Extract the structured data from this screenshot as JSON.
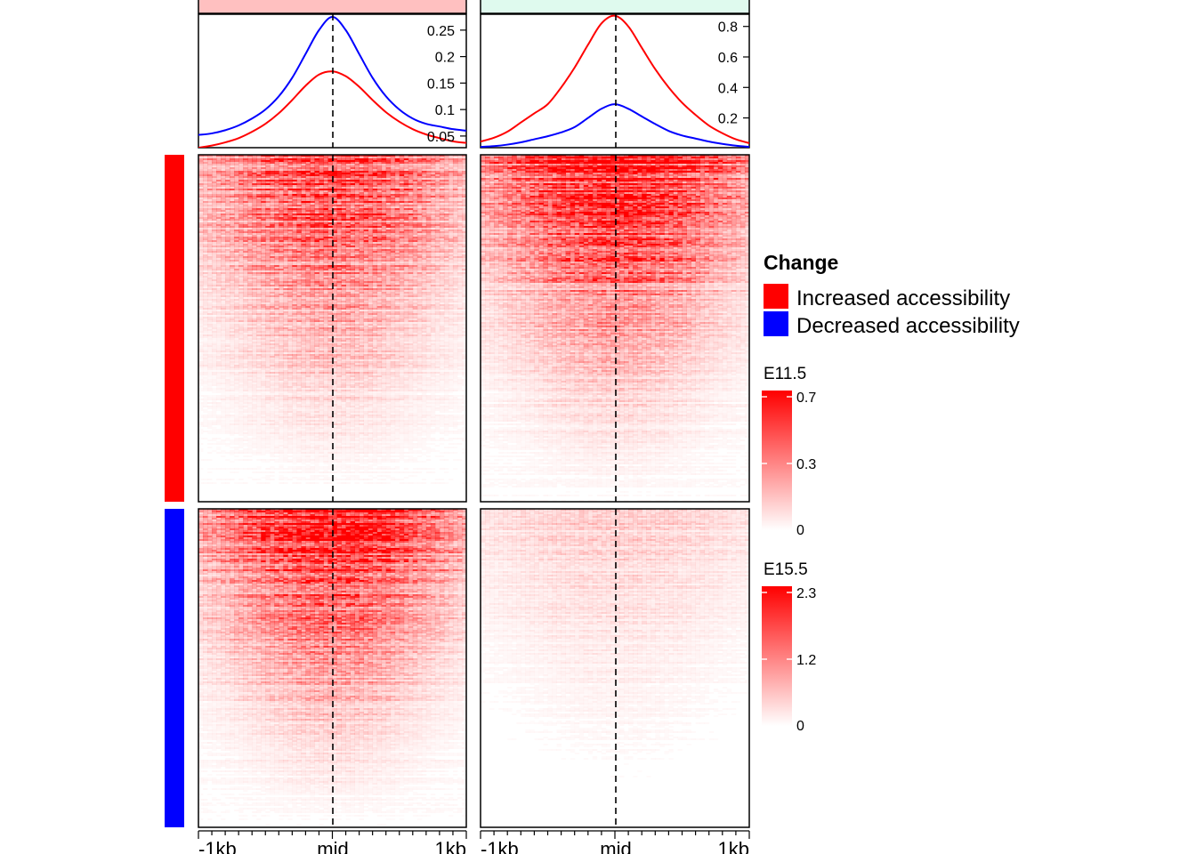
{
  "colors": {
    "increased": "#FF0000",
    "decreased": "#0000FF",
    "header_left": "#FFC0C0",
    "header_right": "#DFFAEE",
    "heat_high": "#FF0000",
    "heat_low": "#FFFFFF"
  },
  "legend": {
    "title": "Change",
    "items": [
      {
        "label": "Increased accessibility",
        "color": "#FF0000"
      },
      {
        "label": "Decreased accessibility",
        "color": "#0000FF"
      }
    ]
  },
  "colorbars": [
    {
      "title": "E11.5",
      "ticks": [
        "0.7",
        "0.3",
        "0"
      ],
      "values": [
        0.7,
        0.3,
        0
      ]
    },
    {
      "title": "E15.5",
      "ticks": [
        "2.3",
        "1.2",
        "0"
      ],
      "values": [
        2.3,
        1.2,
        0
      ]
    }
  ],
  "chart_data": [
    {
      "type": "line",
      "panel": "profile-left",
      "x": [
        -1000,
        -900,
        -800,
        -700,
        -600,
        -500,
        -400,
        -300,
        -200,
        -100,
        0,
        100,
        200,
        300,
        400,
        500,
        600,
        700,
        800,
        900,
        1000
      ],
      "xtick_labels": [
        "-1kb",
        "mid",
        "1kb"
      ],
      "ytick_labels": [
        "0.25",
        "0.2",
        "0.15",
        "0.1",
        "0.05"
      ],
      "yticks": [
        0.25,
        0.2,
        0.15,
        0.1,
        0.05
      ],
      "ylim": [
        0.028,
        0.28
      ],
      "series": [
        {
          "color": "#0000FF",
          "values": [
            0.052,
            0.055,
            0.061,
            0.07,
            0.083,
            0.1,
            0.125,
            0.16,
            0.205,
            0.25,
            0.275,
            0.25,
            0.205,
            0.16,
            0.125,
            0.1,
            0.083,
            0.073,
            0.068,
            0.063,
            0.06
          ]
        },
        {
          "color": "#FF0000",
          "values": [
            0.028,
            0.032,
            0.038,
            0.046,
            0.058,
            0.073,
            0.093,
            0.118,
            0.145,
            0.166,
            0.172,
            0.163,
            0.143,
            0.118,
            0.095,
            0.077,
            0.063,
            0.053,
            0.046,
            0.04,
            0.037
          ]
        }
      ]
    },
    {
      "type": "line",
      "panel": "profile-right",
      "x": [
        -1000,
        -900,
        -800,
        -700,
        -600,
        -500,
        -400,
        -300,
        -200,
        -100,
        0,
        100,
        200,
        300,
        400,
        500,
        600,
        700,
        800,
        900,
        1000
      ],
      "xtick_labels": [
        "-1kb",
        "mid",
        "1kb"
      ],
      "ytick_labels": [
        "0.8",
        "0.6",
        "0.4",
        "0.2"
      ],
      "yticks": [
        0.8,
        0.6,
        0.4,
        0.2
      ],
      "ylim": [
        0.005,
        0.88
      ],
      "series": [
        {
          "color": "#FF0000",
          "values": [
            0.045,
            0.07,
            0.11,
            0.17,
            0.23,
            0.29,
            0.4,
            0.53,
            0.68,
            0.82,
            0.87,
            0.8,
            0.66,
            0.52,
            0.4,
            0.3,
            0.22,
            0.15,
            0.1,
            0.06,
            0.035
          ]
        },
        {
          "color": "#0000FF",
          "values": [
            0.01,
            0.015,
            0.025,
            0.04,
            0.06,
            0.08,
            0.105,
            0.14,
            0.2,
            0.26,
            0.29,
            0.26,
            0.21,
            0.16,
            0.115,
            0.085,
            0.065,
            0.045,
            0.03,
            0.018,
            0.01
          ]
        }
      ]
    },
    {
      "type": "heatmap",
      "panel": "heatmap-left",
      "xtick_labels": [
        "-1kb",
        "mid",
        "1kb"
      ],
      "row_groups": [
        "Increased accessibility",
        "Decreased accessibility"
      ],
      "colorbar": "E11.5",
      "peak_signal": [
        0.55,
        0.7
      ]
    },
    {
      "type": "heatmap",
      "panel": "heatmap-right",
      "xtick_labels": [
        "-1kb",
        "mid",
        "1kb"
      ],
      "row_groups": [
        "Increased accessibility",
        "Decreased accessibility"
      ],
      "colorbar": "E15.5",
      "peak_signal": [
        2.3,
        0.4
      ]
    }
  ]
}
